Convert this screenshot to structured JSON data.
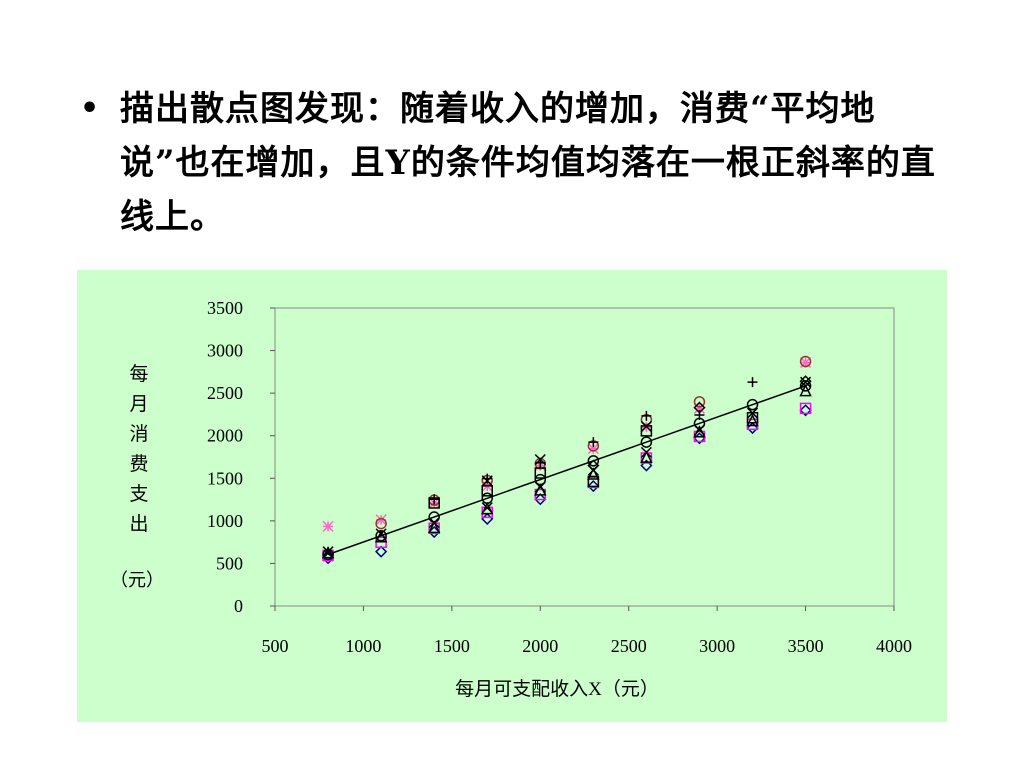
{
  "slide": {
    "bullet_symbol": "•",
    "bullet_text": "描出散点图发现：随着收入的增加，消费“平均地说”也在增加，且Y的条件均值均落在一根正斜率的直线上。"
  },
  "chart_data": {
    "type": "scatter",
    "title": "",
    "xlabel": "每月可支配收入X（元）",
    "ylabel_chars": [
      "每",
      "月",
      "消",
      "费",
      "支",
      "出"
    ],
    "ylabel_unit": "（元）",
    "xlim": [
      500,
      4000
    ],
    "ylim": [
      0,
      3500
    ],
    "xticks": [
      500,
      1000,
      1500,
      2000,
      2500,
      3000,
      3500,
      4000
    ],
    "yticks": [
      0,
      500,
      1000,
      1500,
      2000,
      2500,
      3000,
      3500
    ],
    "grid": false,
    "legend": "none",
    "series": [
      {
        "marker": "diamond",
        "color": "#000080",
        "points": [
          [
            800,
            561
          ],
          [
            1100,
            638
          ],
          [
            1400,
            869
          ],
          [
            1700,
            1023
          ],
          [
            2000,
            1254
          ],
          [
            2300,
            1408
          ],
          [
            2600,
            1650
          ],
          [
            2900,
            1969
          ],
          [
            3200,
            2090
          ],
          [
            3500,
            2299
          ]
        ]
      },
      {
        "marker": "square",
        "color": "#ff00ff",
        "points": [
          [
            800,
            594
          ],
          [
            1100,
            748
          ],
          [
            1400,
            913
          ],
          [
            1700,
            1100
          ],
          [
            2000,
            1309
          ],
          [
            2300,
            1452
          ],
          [
            2600,
            1738
          ],
          [
            2900,
            1991
          ],
          [
            3200,
            2134
          ],
          [
            3500,
            2321
          ]
        ]
      },
      {
        "marker": "triangle",
        "color": "#000000",
        "points": [
          [
            800,
            627
          ],
          [
            1100,
            814
          ],
          [
            1400,
            924
          ],
          [
            1700,
            1144
          ],
          [
            2000,
            1364
          ],
          [
            2300,
            1551
          ],
          [
            2600,
            1749
          ],
          [
            2900,
            2046
          ],
          [
            3200,
            2178
          ],
          [
            3500,
            2530
          ]
        ]
      },
      {
        "marker": "x",
        "color": "#000000",
        "points": [
          [
            800,
            638
          ],
          [
            1100,
            847
          ],
          [
            1400,
            979
          ],
          [
            1700,
            1155
          ],
          [
            2000,
            1397
          ],
          [
            2300,
            1595
          ],
          [
            2600,
            1804
          ],
          [
            2900,
            2068
          ],
          [
            3200,
            2266
          ],
          [
            3500,
            2629
          ]
        ]
      },
      {
        "marker": "asterisk",
        "color": "#ff66cc",
        "points": [
          [
            800,
            935
          ],
          [
            1100,
            1012
          ],
          [
            1400,
            1210
          ],
          [
            1700,
            1408
          ],
          [
            2000,
            1650
          ],
          [
            2300,
            1848
          ],
          [
            2600,
            2101
          ],
          [
            2900,
            2321
          ],
          [
            3500,
            2860
          ]
        ]
      },
      {
        "marker": "circle",
        "color": "#993333",
        "points": [
          [
            1100,
            968
          ],
          [
            1400,
            1243
          ],
          [
            1700,
            1474
          ],
          [
            2000,
            1672
          ],
          [
            2300,
            1881
          ],
          [
            2600,
            2189
          ],
          [
            2900,
            2398
          ],
          [
            3500,
            2871
          ]
        ]
      },
      {
        "marker": "plus",
        "color": "#000000",
        "points": [
          [
            1400,
            1254
          ],
          [
            1700,
            1496
          ],
          [
            2000,
            1683
          ],
          [
            2300,
            1925
          ],
          [
            2600,
            2233
          ],
          [
            2900,
            2244
          ],
          [
            3200,
            2629
          ]
        ]
      },
      {
        "marker": "square",
        "color": "#000000",
        "points": [
          [
            1400,
            1210
          ],
          [
            1700,
            1353
          ],
          [
            2000,
            1562
          ],
          [
            2300,
            1463
          ],
          [
            2600,
            2057
          ],
          [
            3200,
            2211
          ]
        ]
      },
      {
        "marker": "x",
        "color": "#000000",
        "points": [
          [
            1700,
            1470
          ],
          [
            2000,
            1720
          ],
          [
            2600,
            2110
          ]
        ]
      },
      {
        "marker": "circle",
        "color": "#000000",
        "points": [
          [
            800,
            605
          ],
          [
            1100,
            825
          ],
          [
            1400,
            1045
          ],
          [
            1700,
            1265
          ],
          [
            2000,
            1485
          ],
          [
            2300,
            1705
          ],
          [
            2600,
            1925
          ],
          [
            2900,
            2145
          ],
          [
            3200,
            2365
          ],
          [
            3500,
            2585
          ]
        ]
      },
      {
        "marker": "diamond",
        "color": "#000000",
        "points": [
          [
            2300,
            1650
          ],
          [
            2900,
            2330
          ],
          [
            3500,
            2640
          ]
        ]
      }
    ],
    "trend_line": {
      "from": [
        800,
        605
      ],
      "to": [
        3500,
        2585
      ]
    }
  }
}
